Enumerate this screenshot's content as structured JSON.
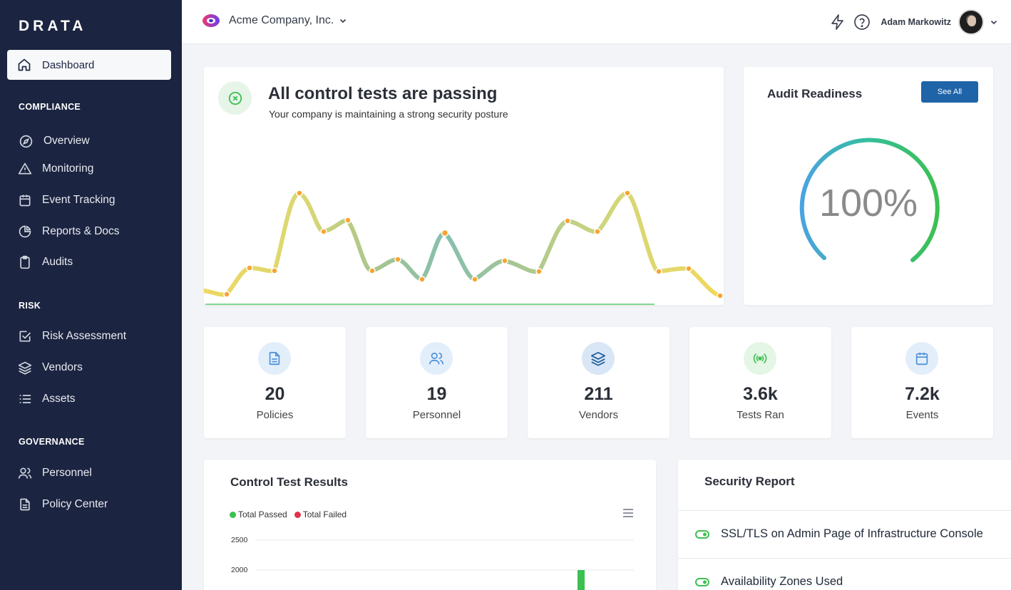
{
  "app": {
    "logo": "DRATA"
  },
  "sidebar": {
    "active_item": "Dashboard",
    "sections": [
      {
        "label": "COMPLIANCE",
        "items": [
          "Overview",
          "Monitoring",
          "Event Tracking",
          "Reports & Docs",
          "Audits"
        ]
      },
      {
        "label": "RISK",
        "items": [
          "Risk Assessment",
          "Vendors",
          "Assets"
        ]
      },
      {
        "label": "GOVERNANCE",
        "items": [
          "Personnel",
          "Policy Center"
        ]
      }
    ],
    "icons": {
      "dashboard": "home-icon",
      "overview": "compass-icon",
      "monitoring": "warning-triangle-icon",
      "event_tracking": "calendar-icon",
      "reports_docs": "pie-chart-icon",
      "audits": "clipboard-icon",
      "risk_assessment": "checkbox-icon",
      "vendors": "layers-icon",
      "assets": "list-icon",
      "personnel": "users-icon",
      "policy_center": "document-icon"
    }
  },
  "header": {
    "company": "Acme Company, Inc.",
    "user_name": "Adam Markowitz"
  },
  "hero": {
    "title": "All control tests are passing",
    "subtitle": "Your company is maintaining a strong security posture"
  },
  "audit": {
    "title": "Audit Readiness",
    "see_all_label": "See All",
    "percent_label": "100%",
    "readiness": 1.0
  },
  "stats": [
    {
      "value": "20",
      "label": "Policies",
      "icon": "document-icon"
    },
    {
      "value": "19",
      "label": "Personnel",
      "icon": "users-icon"
    },
    {
      "value": "211",
      "label": "Vendors",
      "icon": "layers-icon"
    },
    {
      "value": "3.6k",
      "label": "Tests Ran",
      "icon": "broadcast-icon"
    },
    {
      "value": "7.2k",
      "label": "Events",
      "icon": "calendar-icon"
    }
  ],
  "control_tests": {
    "title": "Control Test Results",
    "legend": [
      {
        "label": "Total Passed",
        "color": "#3cc052"
      },
      {
        "label": "Total Failed",
        "color": "#e0334a"
      }
    ],
    "y_ticks": [
      "2500",
      "2000"
    ]
  },
  "security_report": {
    "title": "Security Report",
    "items": [
      "SSL/TLS on Admin Page of Infrastructure Console",
      "Availability Zones Used"
    ]
  },
  "colors": {
    "sidebar_bg": "#1b2440",
    "accent_blue": "#1f63a8",
    "pass_green": "#3cc052",
    "fail_red": "#e0334a"
  }
}
